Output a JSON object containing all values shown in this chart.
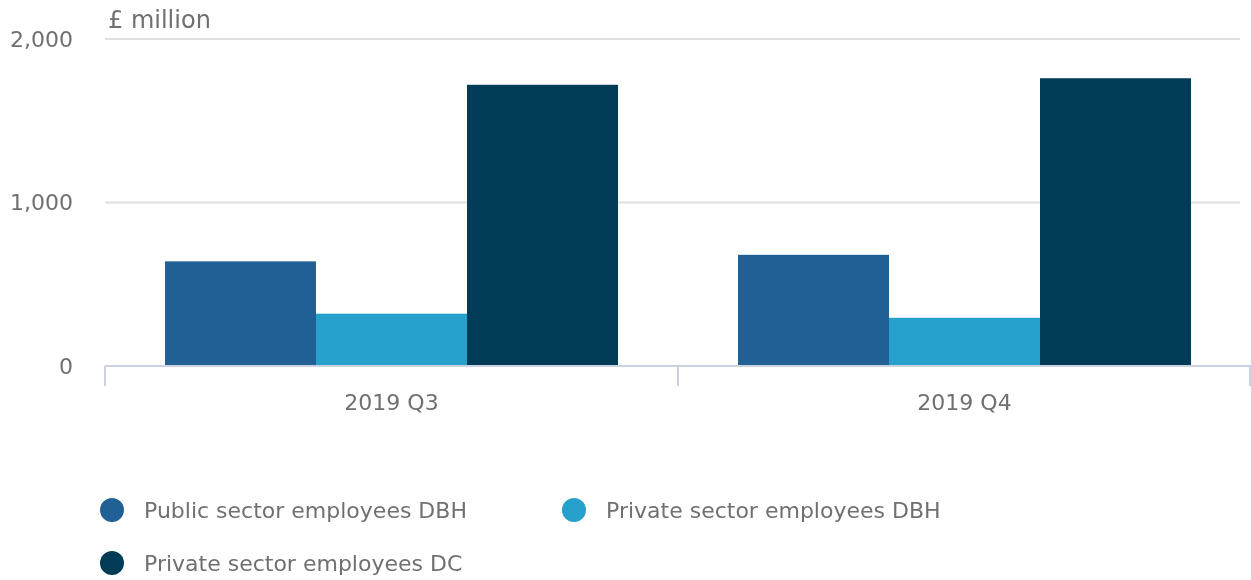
{
  "chart_data": {
    "type": "bar",
    "ylabel": "£ million",
    "categories": [
      "2019 Q3",
      "2019 Q4"
    ],
    "series": [
      {
        "name": "Public sector employees DBH",
        "color": "#206095",
        "values": [
          640,
          680
        ]
      },
      {
        "name": "Private sector employees DBH",
        "color": "#27a0cc",
        "values": [
          320,
          295
        ]
      },
      {
        "name": "Private sector employees DC",
        "color": "#003c57",
        "values": [
          1720,
          1760
        ]
      }
    ],
    "ylim": [
      0,
      2000
    ],
    "yticks": [
      {
        "value": 0,
        "label": "0"
      },
      {
        "value": 1000,
        "label": "1,000"
      },
      {
        "value": 2000,
        "label": "2,000"
      }
    ],
    "grid": "y",
    "legend": "bottom left"
  }
}
